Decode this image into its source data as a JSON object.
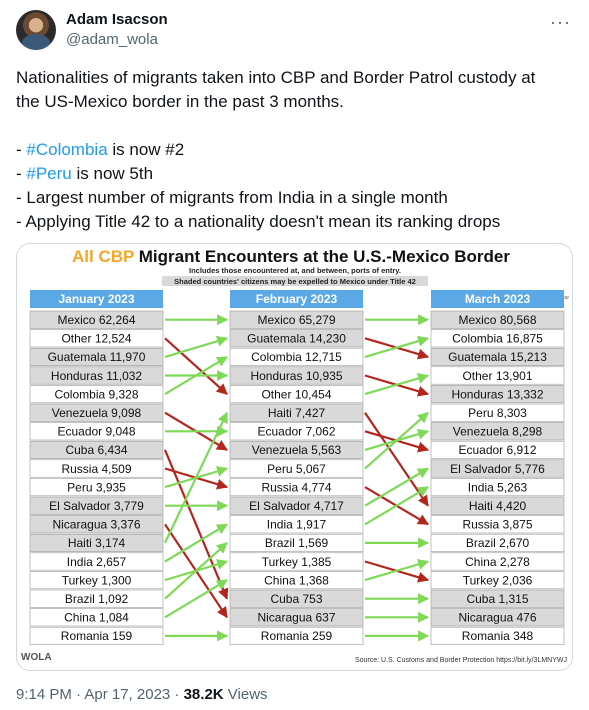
{
  "author": {
    "name": "Adam Isacson",
    "handle": "@adam_wola",
    "avatar_icon": "avatar-photo"
  },
  "more_icon": "more-options-icon",
  "tweet": {
    "line1": "Nationalities of migrants taken into CBP and Border Patrol custody at",
    "line2": "the US-Mexico border in the past 3 months.",
    "bullet1_prefix": "- ",
    "bullet1_tag": "#Colombia",
    "bullet1_rest": " is now #2",
    "bullet2_prefix": "- ",
    "bullet2_tag": "#Peru",
    "bullet2_rest": " is now 5th",
    "bullet3": "- Largest number of migrants from India in a single month",
    "bullet4": "- Applying Title 42 to a nationality doesn't mean its ranking drops"
  },
  "infographic": {
    "title_accent": "All CBP",
    "title_rest": " Migrant Encounters at the U.S.-Mexico Border",
    "subtitle1": "Includes those encountered at, and between, ports of entry.",
    "subtitle2": "Shaded countries' citizens may be expelled to Mexico under Title 42",
    "source": "Source: U.S. Customs and Border Protection https://bit.ly/3LMNYWJ",
    "logo": "WOLA",
    "change_header": "Jan-Mar",
    "colors": {
      "header_blue": "#5aa9e6",
      "shaded": "#d9d9d9",
      "green_arrow": "#7ed957",
      "red_arrow": "#b3261e",
      "accent_orange": "#f5a623"
    },
    "columns": [
      {
        "header": "January 2023",
        "rows": [
          {
            "label": "Mexico 62,264",
            "shaded": true
          },
          {
            "label": "Other 12,524",
            "shaded": false
          },
          {
            "label": "Guatemala 11,970",
            "shaded": true
          },
          {
            "label": "Honduras 11,032",
            "shaded": true
          },
          {
            "label": "Colombia 9,328",
            "shaded": false
          },
          {
            "label": "Venezuela 9,098",
            "shaded": true
          },
          {
            "label": "Ecuador 9,048",
            "shaded": false
          },
          {
            "label": "Cuba 6,434",
            "shaded": true
          },
          {
            "label": "Russia 4,509",
            "shaded": false
          },
          {
            "label": "Peru 3,935",
            "shaded": false
          },
          {
            "label": "El Salvador 3,779",
            "shaded": true
          },
          {
            "label": "Nicaragua 3,376",
            "shaded": true
          },
          {
            "label": "Haiti 3,174",
            "shaded": true
          },
          {
            "label": "India 2,657",
            "shaded": false
          },
          {
            "label": "Turkey 1,300",
            "shaded": false
          },
          {
            "label": "Brazil 1,092",
            "shaded": false
          },
          {
            "label": "China 1,084",
            "shaded": false
          },
          {
            "label": "Romania 159",
            "shaded": false
          }
        ]
      },
      {
        "header": "February 2023",
        "rows": [
          {
            "label": "Mexico 65,279",
            "shaded": true
          },
          {
            "label": "Guatemala 14,230",
            "shaded": true
          },
          {
            "label": "Colombia 12,715",
            "shaded": false
          },
          {
            "label": "Honduras 10,935",
            "shaded": true
          },
          {
            "label": "Other 10,454",
            "shaded": false
          },
          {
            "label": "Haiti 7,427",
            "shaded": true
          },
          {
            "label": "Ecuador 7,062",
            "shaded": false
          },
          {
            "label": "Venezuela 5,563",
            "shaded": true
          },
          {
            "label": "Peru 5,067",
            "shaded": false
          },
          {
            "label": "Russia 4,774",
            "shaded": false
          },
          {
            "label": "El Salvador 4,717",
            "shaded": true
          },
          {
            "label": "India 1,917",
            "shaded": false
          },
          {
            "label": "Brazil 1,569",
            "shaded": false
          },
          {
            "label": "Turkey 1,385",
            "shaded": false
          },
          {
            "label": "China 1,368",
            "shaded": false
          },
          {
            "label": "Cuba 753",
            "shaded": true
          },
          {
            "label": "Nicaragua 637",
            "shaded": true
          },
          {
            "label": "Romania 259",
            "shaded": false
          }
        ]
      },
      {
        "header": "March 2023",
        "rows": [
          {
            "label": "Mexico 80,568",
            "shaded": true
          },
          {
            "label": "Colombia 16,875",
            "shaded": false
          },
          {
            "label": "Guatemala 15,213",
            "shaded": true
          },
          {
            "label": "Other 13,901",
            "shaded": false
          },
          {
            "label": "Honduras 13,332",
            "shaded": true
          },
          {
            "label": "Peru 8,303",
            "shaded": false
          },
          {
            "label": "Venezuela 8,298",
            "shaded": true
          },
          {
            "label": "Ecuador 6,912",
            "shaded": false
          },
          {
            "label": "El Salvador 5,776",
            "shaded": true
          },
          {
            "label": "India 5,263",
            "shaded": false
          },
          {
            "label": "Haiti 4,420",
            "shaded": true
          },
          {
            "label": "Russia 3,875",
            "shaded": false
          },
          {
            "label": "Brazil 2,670",
            "shaded": false
          },
          {
            "label": "China 2,278",
            "shaded": false
          },
          {
            "label": "Turkey 2,036",
            "shaded": false
          },
          {
            "label": "Cuba 1,315",
            "shaded": true
          },
          {
            "label": "Nicaragua 476",
            "shaded": true
          },
          {
            "label": "Romania 348",
            "shaded": false
          }
        ]
      }
    ],
    "transitions_jan_feb": [
      {
        "from": 0,
        "to": 0,
        "dir": "up"
      },
      {
        "from": 1,
        "to": 4,
        "dir": "down"
      },
      {
        "from": 2,
        "to": 1,
        "dir": "up"
      },
      {
        "from": 3,
        "to": 3,
        "dir": "same"
      },
      {
        "from": 4,
        "to": 2,
        "dir": "up"
      },
      {
        "from": 5,
        "to": 7,
        "dir": "down"
      },
      {
        "from": 6,
        "to": 6,
        "dir": "same"
      },
      {
        "from": 7,
        "to": 15,
        "dir": "down"
      },
      {
        "from": 8,
        "to": 9,
        "dir": "down"
      },
      {
        "from": 9,
        "to": 8,
        "dir": "up"
      },
      {
        "from": 10,
        "to": 10,
        "dir": "same"
      },
      {
        "from": 11,
        "to": 16,
        "dir": "down"
      },
      {
        "from": 12,
        "to": 5,
        "dir": "up"
      },
      {
        "from": 13,
        "to": 11,
        "dir": "up"
      },
      {
        "from": 14,
        "to": 13,
        "dir": "up"
      },
      {
        "from": 15,
        "to": 12,
        "dir": "up"
      },
      {
        "from": 16,
        "to": 14,
        "dir": "up"
      },
      {
        "from": 17,
        "to": 17,
        "dir": "same"
      }
    ],
    "transitions_feb_mar": [
      {
        "from": 0,
        "to": 0,
        "dir": "same"
      },
      {
        "from": 1,
        "to": 2,
        "dir": "down"
      },
      {
        "from": 2,
        "to": 1,
        "dir": "up"
      },
      {
        "from": 3,
        "to": 4,
        "dir": "down"
      },
      {
        "from": 4,
        "to": 3,
        "dir": "up"
      },
      {
        "from": 5,
        "to": 10,
        "dir": "down"
      },
      {
        "from": 6,
        "to": 7,
        "dir": "down"
      },
      {
        "from": 7,
        "to": 6,
        "dir": "up"
      },
      {
        "from": 8,
        "to": 5,
        "dir": "up"
      },
      {
        "from": 9,
        "to": 11,
        "dir": "down"
      },
      {
        "from": 10,
        "to": 8,
        "dir": "up"
      },
      {
        "from": 11,
        "to": 9,
        "dir": "up"
      },
      {
        "from": 12,
        "to": 12,
        "dir": "same"
      },
      {
        "from": 13,
        "to": 14,
        "dir": "down"
      },
      {
        "from": 14,
        "to": 13,
        "dir": "up"
      },
      {
        "from": 15,
        "to": 15,
        "dir": "same"
      },
      {
        "from": 16,
        "to": 16,
        "dir": "same"
      },
      {
        "from": 17,
        "to": 17,
        "dir": "same"
      }
    ]
  },
  "meta": {
    "time": "9:14 PM · Apr 17, 2023 · ",
    "views_count": "38.2K",
    "views_label": " Views"
  }
}
